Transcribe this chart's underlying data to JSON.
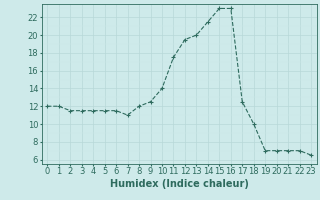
{
  "x": [
    0,
    1,
    2,
    3,
    4,
    5,
    6,
    7,
    8,
    9,
    10,
    11,
    12,
    13,
    14,
    15,
    16,
    17,
    18,
    19,
    20,
    21,
    22,
    23
  ],
  "y": [
    12,
    12,
    11.5,
    11.5,
    11.5,
    11.5,
    11.5,
    11,
    12,
    12.5,
    14,
    17.5,
    19.5,
    20,
    21.5,
    23,
    23,
    12.5,
    10,
    7,
    7,
    7,
    7,
    6.5
  ],
  "xlabel": "Humidex (Indice chaleur)",
  "xlim": [
    -0.5,
    23.5
  ],
  "ylim": [
    5.5,
    23.5
  ],
  "yticks": [
    6,
    8,
    10,
    12,
    14,
    16,
    18,
    20,
    22
  ],
  "xticks": [
    0,
    1,
    2,
    3,
    4,
    5,
    6,
    7,
    8,
    9,
    10,
    11,
    12,
    13,
    14,
    15,
    16,
    17,
    18,
    19,
    20,
    21,
    22,
    23
  ],
  "line_color": "#2e6b5e",
  "marker": "+",
  "bg_color": "#ceeaea",
  "grid_major_color": "#b8d8d8",
  "grid_minor_color": "#cde8e8",
  "tick_fontsize": 6,
  "xlabel_fontsize": 7
}
